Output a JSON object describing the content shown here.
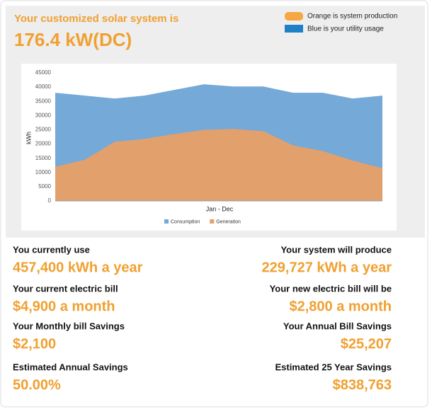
{
  "header": {
    "title": "Your customized solar system is",
    "system_size": "176.4 kW(DC)"
  },
  "key": {
    "orange": "Orange is system production",
    "blue": "Blue is your utility usage"
  },
  "chart_data": {
    "type": "area",
    "x_label": "Jan - Dec",
    "y_label": "kWh",
    "categories": [
      null,
      null,
      null,
      null,
      null,
      null,
      null,
      null,
      null,
      null,
      null,
      null
    ],
    "series": [
      {
        "name": "Consumption",
        "color": "#74a9d8",
        "values": [
          38000,
          37000,
          36000,
          37000,
          39000,
          41000,
          40200,
          40200,
          38000,
          38000,
          36000,
          37000
        ]
      },
      {
        "name": "Generation",
        "color": "#e2a06c",
        "values": [
          12000,
          14500,
          20800,
          21800,
          23500,
          25000,
          25300,
          24500,
          19500,
          17500,
          14200,
          11500
        ]
      }
    ],
    "ylim": [
      0,
      45000
    ],
    "yticks": [
      0,
      5000,
      10000,
      15000,
      20000,
      25000,
      30000,
      35000,
      40000,
      45000
    ],
    "grid": false,
    "legend": "bottom"
  },
  "stats": [
    {
      "label": "You currently use",
      "value": "457,400 kWh a year"
    },
    {
      "label": "Your system will produce",
      "value": "229,727 kWh a year"
    },
    {
      "label": "Your current electric bill",
      "value": "$4,900 a month"
    },
    {
      "label": "Your new electric bill will be",
      "value": "$2,800 a month"
    },
    {
      "label": "Your Monthly bill Savings",
      "value": "$2,100"
    },
    {
      "label": "Your Annual Bill Savings",
      "value": "$25,207"
    },
    {
      "label": "Estimated Annual Savings",
      "value": "50.00%"
    },
    {
      "label": "Estimated 25 Year Savings",
      "value": "$838,763"
    }
  ]
}
